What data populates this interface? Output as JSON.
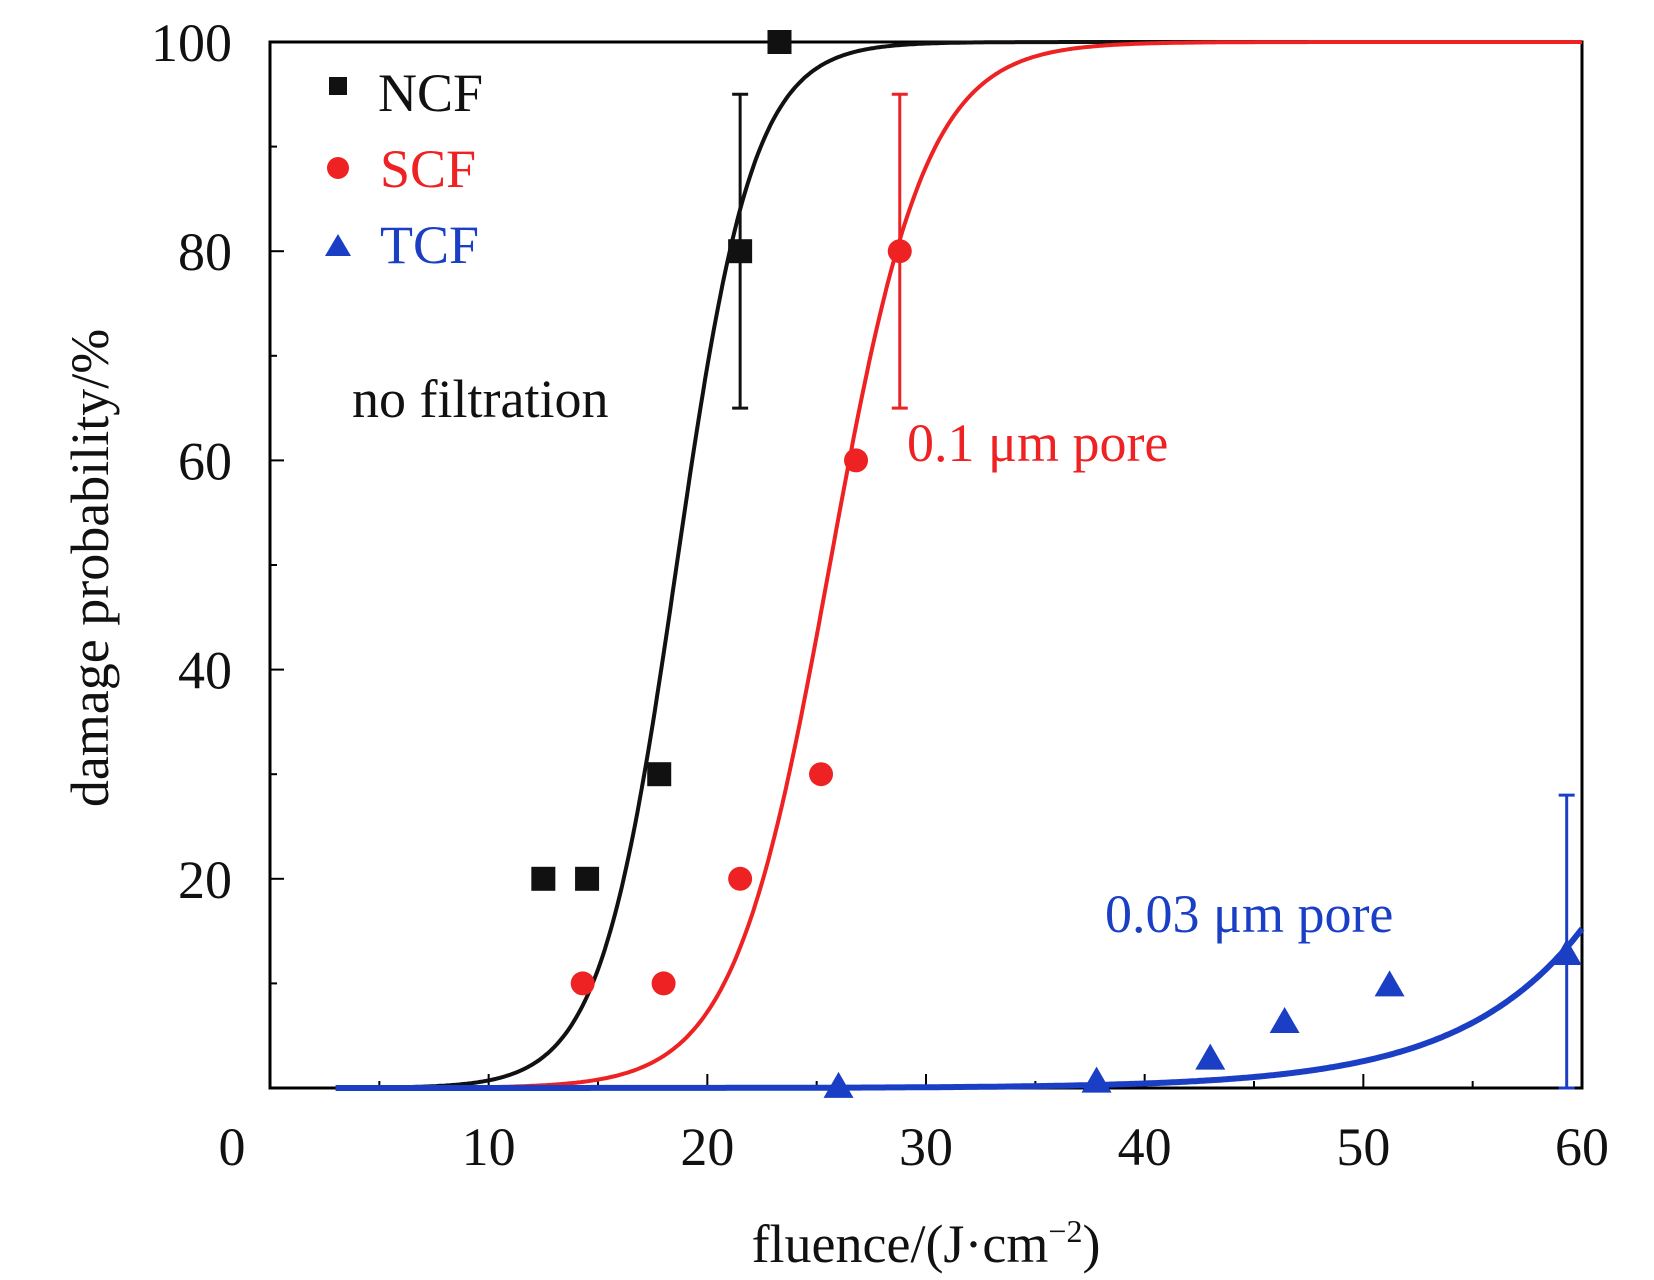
{
  "chart_data": {
    "type": "scatter",
    "xlabel": "fluence/(J·cm",
    "xlabel_sup": "−2",
    "xlabel_close": ")",
    "ylabel": "damage probability/%",
    "xlim": [
      0,
      60
    ],
    "ylim": [
      0,
      100
    ],
    "xticks": [
      "0",
      "10",
      "20",
      "30",
      "40",
      "50",
      "60"
    ],
    "yticks": [
      "20",
      "40",
      "60",
      "80",
      "100"
    ],
    "legend_position": "top-left",
    "series": [
      {
        "name": "NCF",
        "marker": "square",
        "color": "#111111",
        "points": [
          {
            "x": 12.5,
            "y": 20
          },
          {
            "x": 14.5,
            "y": 20
          },
          {
            "x": 17.8,
            "y": 30
          },
          {
            "x": 21.5,
            "y": 80,
            "err": 15
          },
          {
            "x": 23.3,
            "y": 100
          }
        ],
        "fit": {
          "x50": 18.6,
          "width": 1.75,
          "xmin": 3,
          "xmax": 60
        },
        "annotation": "no filtration"
      },
      {
        "name": "SCF",
        "marker": "circle",
        "color": "#ee2222",
        "points": [
          {
            "x": 14.3,
            "y": 10
          },
          {
            "x": 18,
            "y": 10
          },
          {
            "x": 21.5,
            "y": 20
          },
          {
            "x": 25.2,
            "y": 30
          },
          {
            "x": 26.8,
            "y": 60
          },
          {
            "x": 28.8,
            "y": 80,
            "err": 15
          }
        ],
        "fit": {
          "x50": 25.6,
          "width": 2.2,
          "xmin": 3,
          "xmax": 60
        },
        "annotation": "0.1 μm pore"
      },
      {
        "name": "TCF",
        "marker": "triangle",
        "color": "#1a3fc4",
        "points": [
          {
            "x": 26,
            "y": 0.3
          },
          {
            "x": 37.8,
            "y": 0.8
          },
          {
            "x": 43,
            "y": 3
          },
          {
            "x": 46.4,
            "y": 6.5
          },
          {
            "x": 51.2,
            "y": 10
          },
          {
            "x": 59.3,
            "y": 13,
            "err": 15
          }
        ],
        "fit": {
          "a": 0.00035,
          "k": 0.178,
          "xmin": 3,
          "xmax": 60
        },
        "annotation": "0.03 μm pore"
      }
    ]
  }
}
